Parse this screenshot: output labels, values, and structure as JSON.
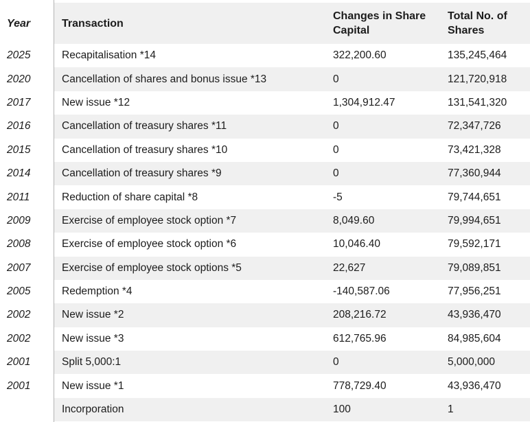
{
  "colors": {
    "stripe": "#f0f0f0",
    "divider": "#b3b3b3",
    "text": "#1c1c1c",
    "background": "#ffffff"
  },
  "table": {
    "columns": [
      {
        "key": "year",
        "label": "Year"
      },
      {
        "key": "transaction",
        "label": "Transaction"
      },
      {
        "key": "change",
        "label": "Changes in Share Capital"
      },
      {
        "key": "total",
        "label": "Total No. of Shares"
      }
    ],
    "rows": [
      {
        "year": "2025",
        "transaction": "Recapitalisation *14",
        "change": "322,200.60",
        "total": "135,245,464"
      },
      {
        "year": "2020",
        "transaction": "Cancellation of shares and bonus issue *13",
        "change": "0",
        "total": "121,720,918"
      },
      {
        "year": "2017",
        "transaction": "New issue *12",
        "change": "1,304,912.47",
        "total": "131,541,320"
      },
      {
        "year": "2016",
        "transaction": "Cancellation of treasury shares *11",
        "change": "0",
        "total": "72,347,726"
      },
      {
        "year": "2015",
        "transaction": "Cancellation of treasury shares *10",
        "change": "0",
        "total": "73,421,328"
      },
      {
        "year": "2014",
        "transaction": "Cancellation of treasury shares *9",
        "change": "0",
        "total": "77,360,944"
      },
      {
        "year": "2011",
        "transaction": "Reduction of share capital *8",
        "change": "-5",
        "total": "79,744,651"
      },
      {
        "year": "2009",
        "transaction": "Exercise of employee stock option *7",
        "change": "8,049.60",
        "total": "79,994,651"
      },
      {
        "year": "2008",
        "transaction": "Exercise of employee stock option *6",
        "change": "10,046.40",
        "total": "79,592,171"
      },
      {
        "year": "2007",
        "transaction": "Exercise of employee stock options *5",
        "change": "22,627",
        "total": "79,089,851"
      },
      {
        "year": "2005",
        "transaction": "Redemption *4",
        "change": "-140,587.06",
        "total": "77,956,251"
      },
      {
        "year": "2002",
        "transaction": "New issue *2",
        "change": "208,216.72",
        "total": "43,936,470"
      },
      {
        "year": "2002",
        "transaction": "New issue *3",
        "change": "612,765.96",
        "total": "84,985,604"
      },
      {
        "year": "2001",
        "transaction": "Split 5,000:1",
        "change": "0",
        "total": "5,000,000"
      },
      {
        "year": "2001",
        "transaction": "New issue *1",
        "change": "778,729.40",
        "total": "43,936,470"
      },
      {
        "year": "",
        "transaction": "Incorporation",
        "change": "100",
        "total": "1"
      }
    ]
  }
}
